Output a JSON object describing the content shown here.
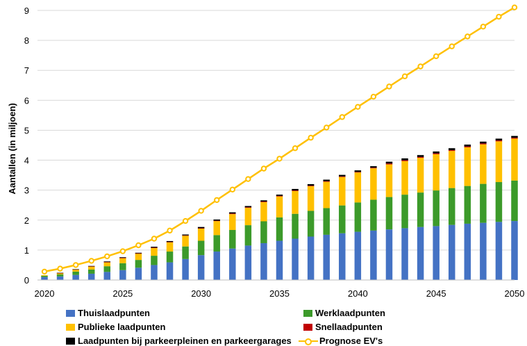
{
  "chart_data": {
    "type": "bar",
    "stacked": true,
    "xlabel": "",
    "ylabel": "Aantallen (in miljoen)",
    "ylim": [
      0,
      9
    ],
    "yticks": [
      0,
      1,
      2,
      3,
      4,
      5,
      6,
      7,
      8,
      9
    ],
    "xticks": [
      2020,
      2025,
      2030,
      2035,
      2040,
      2045,
      2050
    ],
    "grid": "horizontal",
    "legend_position": "bottom",
    "categories": [
      2020,
      2021,
      2022,
      2023,
      2024,
      2025,
      2026,
      2027,
      2028,
      2029,
      2030,
      2031,
      2032,
      2033,
      2034,
      2035,
      2036,
      2037,
      2038,
      2039,
      2040,
      2041,
      2042,
      2043,
      2044,
      2045,
      2046,
      2047,
      2048,
      2049,
      2050
    ],
    "series": [
      {
        "name": "Thuislaadpunten",
        "color": "#4472C4",
        "kind": "bar",
        "values": [
          0.1,
          0.12,
          0.17,
          0.21,
          0.27,
          0.33,
          0.41,
          0.5,
          0.59,
          0.7,
          0.83,
          0.95,
          1.05,
          1.15,
          1.23,
          1.31,
          1.38,
          1.45,
          1.51,
          1.56,
          1.61,
          1.65,
          1.69,
          1.73,
          1.77,
          1.8,
          1.84,
          1.88,
          1.91,
          1.94,
          1.97
        ]
      },
      {
        "name": "Werklaadpunten",
        "color": "#3C9A2A",
        "kind": "bar",
        "values": [
          0.04,
          0.07,
          0.11,
          0.14,
          0.19,
          0.23,
          0.26,
          0.31,
          0.36,
          0.42,
          0.48,
          0.55,
          0.62,
          0.68,
          0.73,
          0.78,
          0.83,
          0.86,
          0.89,
          0.93,
          0.98,
          1.03,
          1.08,
          1.12,
          1.15,
          1.19,
          1.23,
          1.26,
          1.3,
          1.33,
          1.35
        ]
      },
      {
        "name": "Publieke laadpunten",
        "color": "#FFC000",
        "kind": "bar",
        "values": [
          0.02,
          0.04,
          0.07,
          0.1,
          0.13,
          0.17,
          0.21,
          0.26,
          0.31,
          0.36,
          0.41,
          0.47,
          0.53,
          0.58,
          0.64,
          0.7,
          0.76,
          0.82,
          0.88,
          0.95,
          1.0,
          1.05,
          1.09,
          1.12,
          1.16,
          1.21,
          1.24,
          1.29,
          1.32,
          1.36,
          1.4
        ]
      },
      {
        "name": "Snellaadpunten",
        "color": "#C00000",
        "kind": "bar",
        "values": [
          0.0,
          0.005,
          0.005,
          0.01,
          0.01,
          0.01,
          0.01,
          0.01,
          0.01,
          0.01,
          0.01,
          0.01,
          0.02,
          0.02,
          0.02,
          0.02,
          0.02,
          0.02,
          0.02,
          0.02,
          0.02,
          0.02,
          0.03,
          0.03,
          0.03,
          0.03,
          0.03,
          0.03,
          0.03,
          0.03,
          0.03
        ]
      },
      {
        "name": "Laadpunten bij parkeerpleinen en parkeergarages",
        "color": "#000000",
        "kind": "bar",
        "values": [
          0.0,
          0.005,
          0.005,
          0.01,
          0.02,
          0.02,
          0.02,
          0.03,
          0.03,
          0.03,
          0.04,
          0.04,
          0.04,
          0.04,
          0.04,
          0.04,
          0.05,
          0.05,
          0.05,
          0.05,
          0.05,
          0.05,
          0.06,
          0.06,
          0.06,
          0.06,
          0.06,
          0.06,
          0.06,
          0.06,
          0.06
        ]
      },
      {
        "name": "Prognose EV's",
        "color": "#FFC000",
        "kind": "line",
        "values": [
          0.28,
          0.38,
          0.5,
          0.64,
          0.79,
          0.96,
          1.16,
          1.38,
          1.65,
          1.97,
          2.31,
          2.67,
          3.02,
          3.37,
          3.72,
          4.05,
          4.4,
          4.75,
          5.09,
          5.44,
          5.78,
          6.12,
          6.46,
          6.8,
          7.13,
          7.47,
          7.8,
          8.13,
          8.46,
          8.79,
          9.1
        ]
      }
    ]
  }
}
